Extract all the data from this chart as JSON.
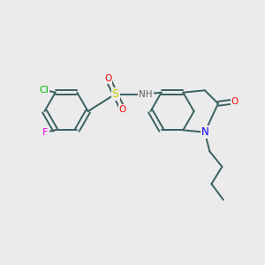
{
  "background_color": "#ebebeb",
  "figsize": [
    3.0,
    3.0
  ],
  "dpi": 100,
  "atoms": {
    "C": {
      "color": "#404040"
    },
    "N": {
      "color": "#0000ff"
    },
    "O": {
      "color": "#ff0000"
    },
    "S": {
      "color": "#cccc00"
    },
    "Cl": {
      "color": "#00bb00"
    },
    "F": {
      "color": "#ee00ee"
    },
    "H": {
      "color": "#606060"
    }
  },
  "bond_color": "#3a6060",
  "bond_width": 1.4,
  "font_size": 7.5
}
